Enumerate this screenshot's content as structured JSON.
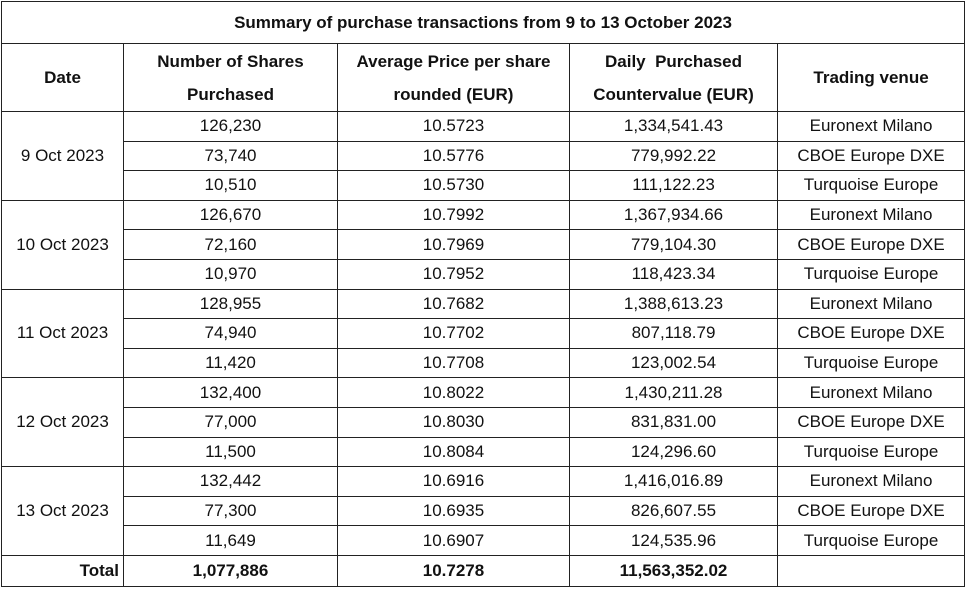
{
  "title": "Summary of purchase transactions from 9 to 13 October 2023",
  "headers": {
    "date": "Date",
    "shares_line1": "Number of Shares",
    "shares_line2": "Purchased",
    "price_line1": "Average Price per share",
    "price_line2": "rounded (EUR)",
    "value_line1": "Daily  Purchased",
    "value_line2": "Countervalue (EUR)",
    "venue": "Trading venue"
  },
  "days": [
    {
      "date": "9 Oct 2023",
      "rows": [
        {
          "shares": "126,230",
          "price": "10.5723",
          "value": "1,334,541.43",
          "venue": "Euronext Milano"
        },
        {
          "shares": "73,740",
          "price": "10.5776",
          "value": "779,992.22",
          "venue": "CBOE Europe DXE"
        },
        {
          "shares": "10,510",
          "price": "10.5730",
          "value": "111,122.23",
          "venue": "Turquoise Europe"
        }
      ]
    },
    {
      "date": "10 Oct 2023",
      "rows": [
        {
          "shares": "126,670",
          "price": "10.7992",
          "value": "1,367,934.66",
          "venue": "Euronext Milano"
        },
        {
          "shares": "72,160",
          "price": "10.7969",
          "value": "779,104.30",
          "venue": "CBOE Europe DXE"
        },
        {
          "shares": "10,970",
          "price": "10.7952",
          "value": "118,423.34",
          "venue": "Turquoise Europe"
        }
      ]
    },
    {
      "date": "11 Oct 2023",
      "rows": [
        {
          "shares": "128,955",
          "price": "10.7682",
          "value": "1,388,613.23",
          "venue": "Euronext Milano"
        },
        {
          "shares": "74,940",
          "price": "10.7702",
          "value": "807,118.79",
          "venue": "CBOE Europe DXE"
        },
        {
          "shares": "11,420",
          "price": "10.7708",
          "value": "123,002.54",
          "venue": "Turquoise Europe"
        }
      ]
    },
    {
      "date": "12 Oct 2023",
      "rows": [
        {
          "shares": "132,400",
          "price": "10.8022",
          "value": "1,430,211.28",
          "venue": "Euronext Milano"
        },
        {
          "shares": "77,000",
          "price": "10.8030",
          "value": "831,831.00",
          "venue": "CBOE Europe DXE"
        },
        {
          "shares": "11,500",
          "price": "10.8084",
          "value": "124,296.60",
          "venue": "Turquoise Europe"
        }
      ]
    },
    {
      "date": "13 Oct 2023",
      "rows": [
        {
          "shares": "132,442",
          "price": "10.6916",
          "value": "1,416,016.89",
          "venue": "Euronext Milano"
        },
        {
          "shares": "77,300",
          "price": "10.6935",
          "value": "826,607.55",
          "venue": "CBOE Europe DXE"
        },
        {
          "shares": "11,649",
          "price": "10.6907",
          "value": "124,535.96",
          "venue": "Turquoise Europe"
        }
      ]
    }
  ],
  "total": {
    "label": "Total",
    "shares": "1,077,886",
    "price": "10.7278",
    "value": "11,563,352.02",
    "venue": ""
  }
}
